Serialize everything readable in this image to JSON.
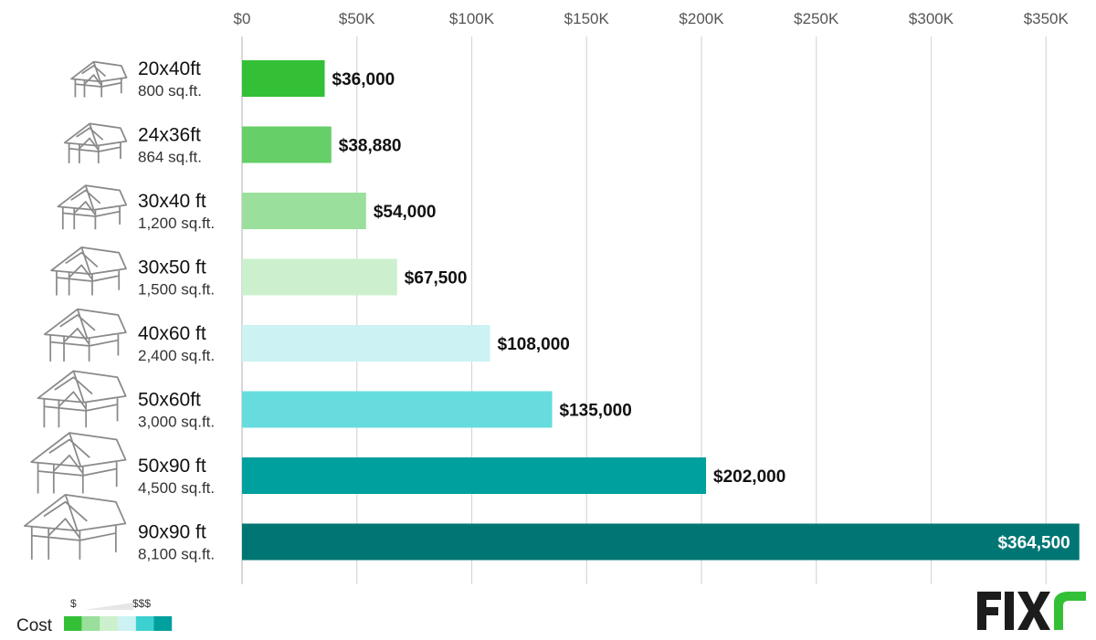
{
  "chart_data": {
    "type": "bar",
    "orientation": "horizontal",
    "categories": [
      {
        "size": "20x40ft",
        "area": "800 sq.ft."
      },
      {
        "size": "24x36ft",
        "area": "864 sq.ft."
      },
      {
        "size": "30x40 ft",
        "area": "1,200 sq.ft."
      },
      {
        "size": "30x50 ft",
        "area": "1,500 sq.ft."
      },
      {
        "size": "40x60 ft",
        "area": "2,400 sq.ft."
      },
      {
        "size": "50x60ft",
        "area": "3,000 sq.ft."
      },
      {
        "size": "50x90 ft",
        "area": "4,500 sq.ft."
      },
      {
        "size": "90x90 ft",
        "area": "8,100 sq.ft."
      }
    ],
    "values": [
      36000,
      38880,
      54000,
      67500,
      108000,
      135000,
      202000,
      364500
    ],
    "value_labels": [
      "$36,000",
      "$38,880",
      "$54,000",
      "$67,500",
      "$108,000",
      "$135,000",
      "$202,000",
      "$364,500"
    ],
    "bar_colors": [
      "#33c037",
      "#66cf68",
      "#9adf9b",
      "#ccf0cd",
      "#ccf2f3",
      "#66dcde",
      "#00a09e",
      "#007674"
    ],
    "xlim": [
      0,
      365000
    ],
    "x_ticks": [
      0,
      50000,
      100000,
      150000,
      200000,
      250000,
      300000,
      350000
    ],
    "x_tick_labels": [
      "$0",
      "$50K",
      "$100K",
      "$150K",
      "$200K",
      "$250K",
      "$300K",
      "$350K"
    ],
    "x_axis_position": "top",
    "grid": true,
    "category_icon": "pavilion-icon",
    "legend": {
      "title": "Cost",
      "low_label": "$",
      "high_label": "$$$",
      "swatches": [
        "#33c037",
        "#99df9b",
        "#ccf0cd",
        "#ccf2f3",
        "#3dd0d0",
        "#00a09e"
      ],
      "placement": "bottom-left"
    }
  },
  "brand": {
    "logo_icon": "fixr-logo",
    "logo_text": "FIXR",
    "colors": {
      "dark": "#1c1c1c",
      "accent": "#33c037"
    }
  }
}
